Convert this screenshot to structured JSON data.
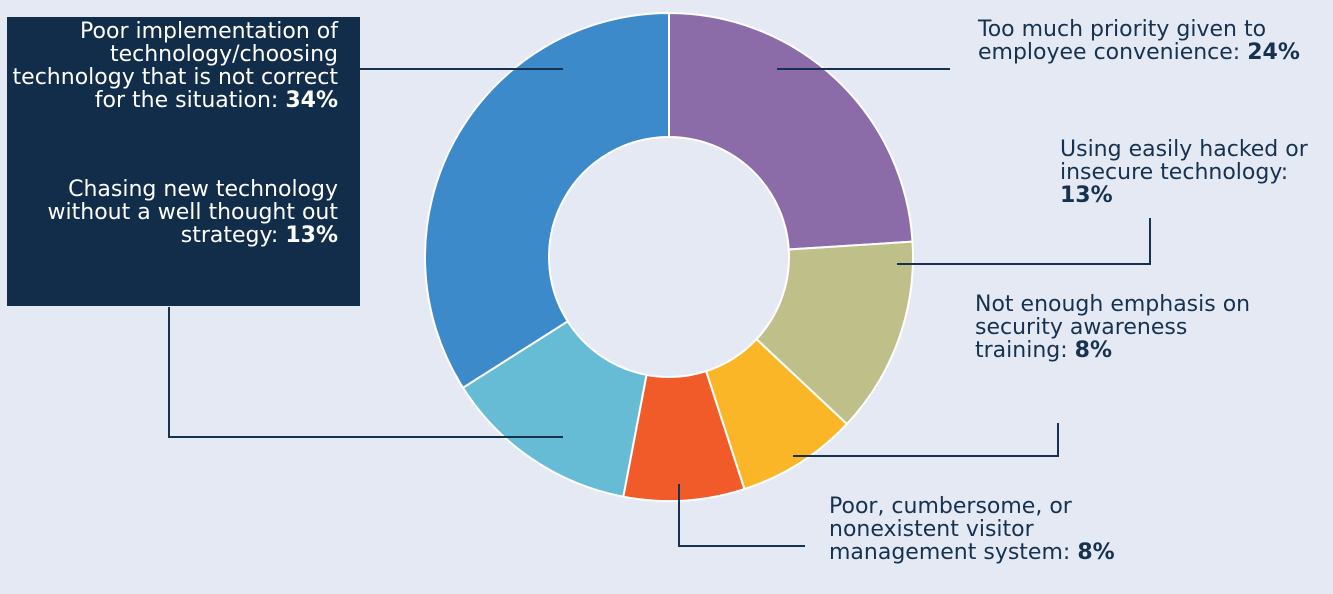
{
  "chart_data": {
    "type": "pie",
    "style": "donut",
    "slices": [
      {
        "label": "Too much priority given to employee convenience:",
        "value": 24,
        "value_text": "24%",
        "color": "#8b6ca9"
      },
      {
        "label": "Using easily hacked or insecure technology:",
        "value": 13,
        "value_text": "13%",
        "color": "#bfbf8a"
      },
      {
        "label": "Not enough emphasis on security awareness training:",
        "value": 8,
        "value_text": "8%",
        "color": "#fbb627"
      },
      {
        "label": "Poor, cumbersome, or nonexistent visitor management system:",
        "value": 8,
        "value_text": "8%",
        "color": "#f15a29"
      },
      {
        "label": "Chasing new technology without a well thought out strategy:",
        "value": 13,
        "value_text": "13%",
        "color": "#66bcd4"
      },
      {
        "label": "Poor implementation of technology/choosing technology that is not correct for the situation:",
        "value": 34,
        "value_text": "34%",
        "color": "#3d8acb"
      }
    ],
    "colors": {
      "background": "#e4e9f3",
      "leader_line": "#173150",
      "left_panel": "#112d4a"
    }
  }
}
